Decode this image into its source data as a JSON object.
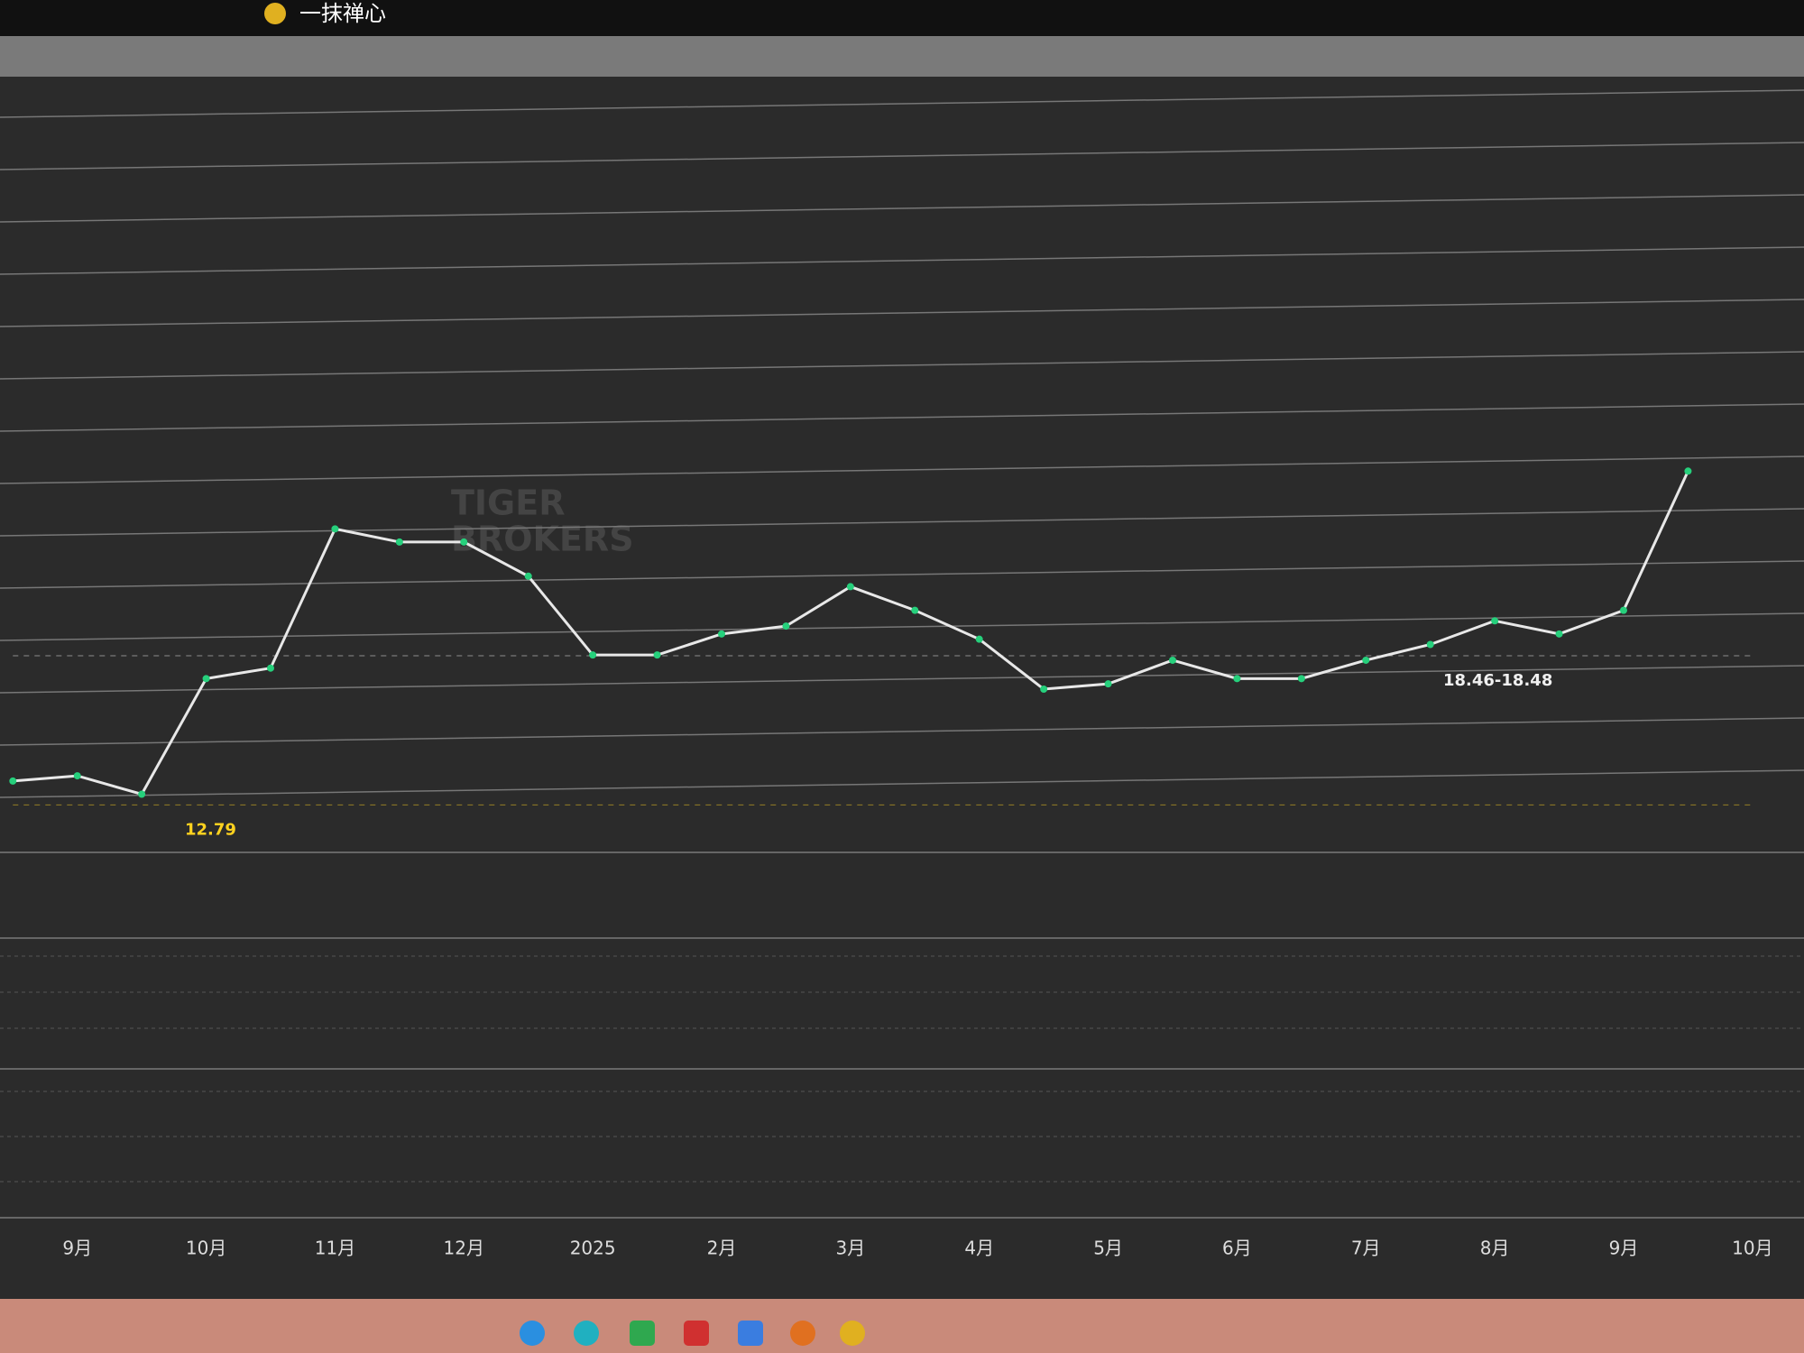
{
  "header": {
    "title": "一抹禅心"
  },
  "watermark": [
    "TIGER",
    "BROKERS"
  ],
  "chart_data": {
    "type": "line",
    "categories": [
      null,
      "9月",
      null,
      "10月",
      null,
      "11月",
      null,
      "12月",
      null,
      "2025",
      null,
      "2月",
      null,
      "3月",
      null,
      "4月",
      null,
      "5月",
      null,
      "6月",
      null,
      "7月",
      null,
      "8月",
      null,
      "9月",
      null,
      "10月"
    ],
    "values": [
      13.7,
      13.9,
      13.2,
      17.6,
      18.0,
      23.3,
      22.8,
      22.8,
      21.5,
      18.5,
      18.5,
      19.3,
      19.6,
      21.1,
      20.2,
      19.1,
      17.2,
      17.4,
      18.3,
      17.6,
      17.6,
      18.3,
      18.9,
      19.8,
      19.3,
      20.2,
      25.5,
      null
    ],
    "color": "#e8e8e8",
    "ylim": [
      11.5,
      40
    ],
    "annotations": [
      {
        "value": 12.79,
        "label": "12.79",
        "color": "#ffd21f"
      },
      {
        "value": 18.47,
        "label": "18.46-18.48",
        "color": "#f0f0f0"
      }
    ]
  }
}
